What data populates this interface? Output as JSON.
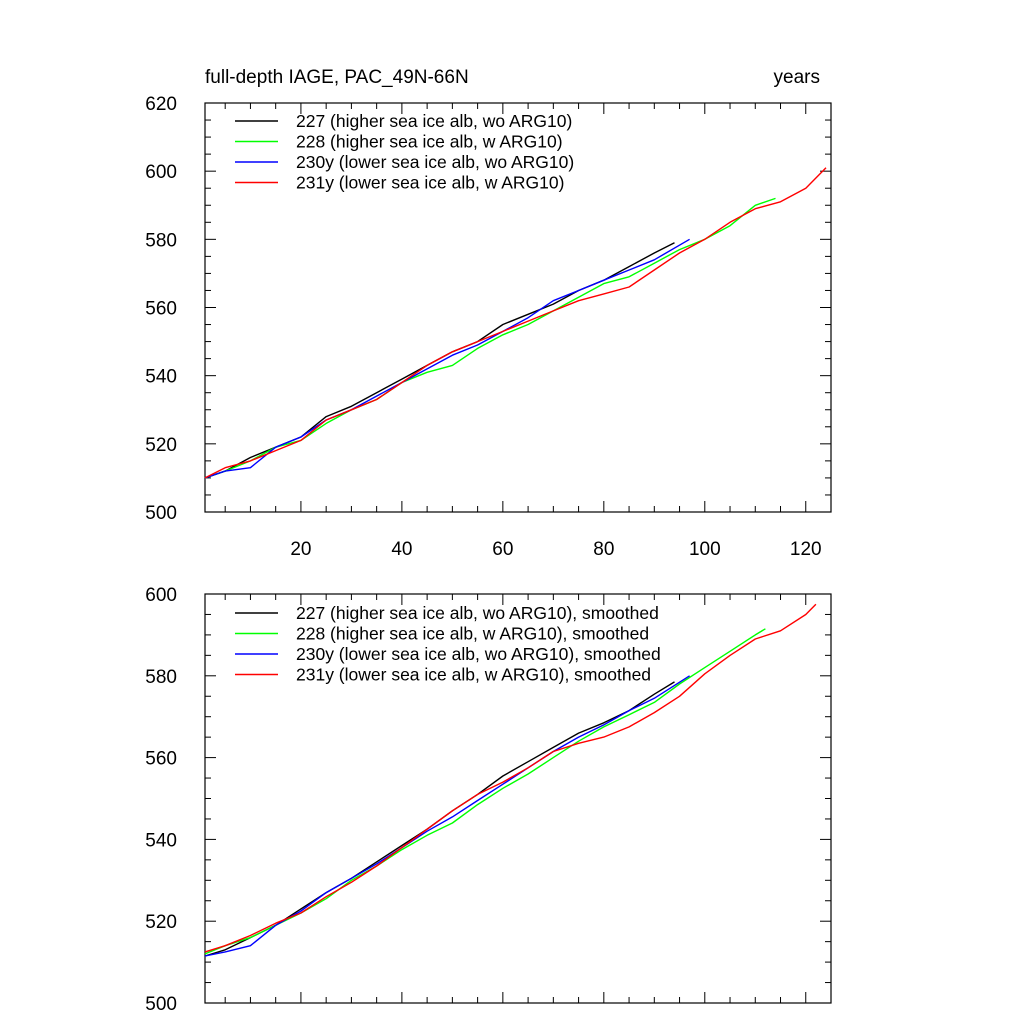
{
  "chart_data": [
    {
      "type": "line",
      "title_left": "full-depth IAGE, PAC_49N-66N",
      "title_right": "years",
      "xlabel": "",
      "ylabel": "",
      "xlim": [
        1,
        125
      ],
      "ylim": [
        500,
        620
      ],
      "x_ticks": [
        20,
        40,
        60,
        80,
        100,
        120
      ],
      "x_tick_labels": [
        "20",
        "40",
        "60",
        "80",
        "100",
        "120"
      ],
      "y_ticks": [
        500,
        520,
        540,
        560,
        580,
        600,
        620
      ],
      "y_tick_labels": [
        "500",
        "520",
        "540",
        "560",
        "580",
        "600",
        "620"
      ],
      "grid": false,
      "legend_position": "top-left",
      "series": [
        {
          "name": "227 (higher sea ice alb, wo ARG10)",
          "color": "#000000",
          "x": [
            1,
            5,
            10,
            15,
            20,
            25,
            30,
            35,
            40,
            45,
            50,
            55,
            60,
            65,
            70,
            75,
            80,
            85,
            90,
            94
          ],
          "y": [
            510,
            512,
            516,
            519,
            522,
            528,
            531,
            535,
            539,
            543,
            547,
            550,
            555,
            558,
            561,
            565,
            568,
            572,
            576,
            579
          ]
        },
        {
          "name": "228 (higher sea ice alb, w ARG10)",
          "color": "#00ff00",
          "x": [
            1,
            5,
            10,
            15,
            20,
            25,
            30,
            35,
            40,
            45,
            50,
            55,
            60,
            65,
            70,
            75,
            80,
            85,
            90,
            95,
            100,
            105,
            110,
            114
          ],
          "y": [
            510,
            512,
            515,
            519,
            521,
            526,
            530,
            533,
            538,
            541,
            543,
            548,
            552,
            555,
            559,
            563,
            567,
            569,
            573,
            577,
            580,
            584,
            590,
            592
          ]
        },
        {
          "name": "230y (lower sea ice alb, wo ARG10)",
          "color": "#0000ff",
          "x": [
            1,
            5,
            10,
            15,
            20,
            25,
            30,
            35,
            40,
            45,
            50,
            55,
            60,
            65,
            70,
            75,
            80,
            85,
            90,
            97
          ],
          "y": [
            510,
            512,
            513,
            519,
            522,
            527,
            530,
            534,
            538,
            542,
            546,
            549,
            553,
            557,
            562,
            565,
            568,
            571,
            574,
            580
          ]
        },
        {
          "name": "231y (lower sea ice alb, w ARG10)",
          "color": "#ff0000",
          "x": [
            1,
            5,
            10,
            15,
            20,
            25,
            30,
            35,
            40,
            45,
            50,
            55,
            60,
            65,
            70,
            75,
            80,
            85,
            90,
            95,
            100,
            105,
            110,
            115,
            120,
            124
          ],
          "y": [
            510,
            513,
            515,
            518,
            521,
            527,
            530,
            533,
            538,
            543,
            547,
            550,
            553,
            556,
            559,
            562,
            564,
            566,
            571,
            576,
            580,
            585,
            589,
            591,
            595,
            601
          ]
        }
      ]
    },
    {
      "type": "line",
      "title": "",
      "xlabel": "",
      "ylabel": "",
      "xlim": [
        1,
        125
      ],
      "ylim": [
        500,
        600
      ],
      "x_ticks": [
        20,
        40,
        60,
        80,
        100,
        120
      ],
      "x_tick_labels": [],
      "y_ticks": [
        500,
        520,
        540,
        560,
        580,
        600
      ],
      "y_tick_labels": [
        "500",
        "520",
        "540",
        "560",
        "580",
        "600"
      ],
      "grid": false,
      "legend_position": "top-left",
      "series": [
        {
          "name": "227 (higher sea ice alb, wo ARG10), smoothed",
          "color": "#000000",
          "x": [
            1,
            5,
            10,
            15,
            20,
            25,
            30,
            35,
            40,
            45,
            50,
            55,
            60,
            65,
            70,
            75,
            80,
            85,
            90,
            94
          ],
          "y": [
            511.5,
            513,
            516,
            519,
            523,
            527,
            530.5,
            534.5,
            538.5,
            542.5,
            547,
            551,
            555.5,
            559,
            562.5,
            566,
            568.5,
            571.5,
            575.5,
            578.5
          ]
        },
        {
          "name": "228 (higher sea ice alb, w ARG10), smoothed",
          "color": "#00ff00",
          "x": [
            1,
            5,
            10,
            15,
            20,
            25,
            30,
            35,
            40,
            45,
            50,
            55,
            60,
            65,
            70,
            75,
            80,
            85,
            90,
            95,
            100,
            105,
            110,
            112
          ],
          "y": [
            512,
            514,
            516,
            519,
            522,
            525.5,
            530,
            533.5,
            537.5,
            541,
            544,
            548.5,
            552.5,
            556,
            560,
            564,
            567.5,
            570.5,
            573.5,
            578,
            582,
            586,
            590,
            591.5
          ]
        },
        {
          "name": "230y (lower sea ice alb, wo ARG10), smoothed",
          "color": "#0000ff",
          "x": [
            1,
            5,
            10,
            15,
            20,
            25,
            30,
            35,
            40,
            45,
            50,
            55,
            60,
            65,
            70,
            75,
            80,
            85,
            90,
            97
          ],
          "y": [
            511.5,
            512.5,
            514,
            519,
            522.5,
            527,
            530.5,
            534,
            538,
            542,
            545.5,
            549.5,
            553.5,
            557.5,
            561.5,
            565,
            568,
            571.5,
            574.5,
            580
          ]
        },
        {
          "name": "231y (lower sea ice alb, w ARG10), smoothed",
          "color": "#ff0000",
          "x": [
            1,
            5,
            10,
            15,
            20,
            25,
            30,
            35,
            40,
            45,
            50,
            55,
            60,
            65,
            70,
            75,
            80,
            85,
            90,
            95,
            100,
            105,
            110,
            115,
            120,
            122
          ],
          "y": [
            512.5,
            514,
            516.5,
            519.5,
            522,
            526,
            529.5,
            533.5,
            538,
            542.5,
            547,
            551,
            554,
            557.5,
            561.5,
            563.5,
            565,
            567.5,
            571,
            575,
            580.5,
            585,
            589,
            591,
            595,
            597.5
          ]
        }
      ]
    }
  ]
}
